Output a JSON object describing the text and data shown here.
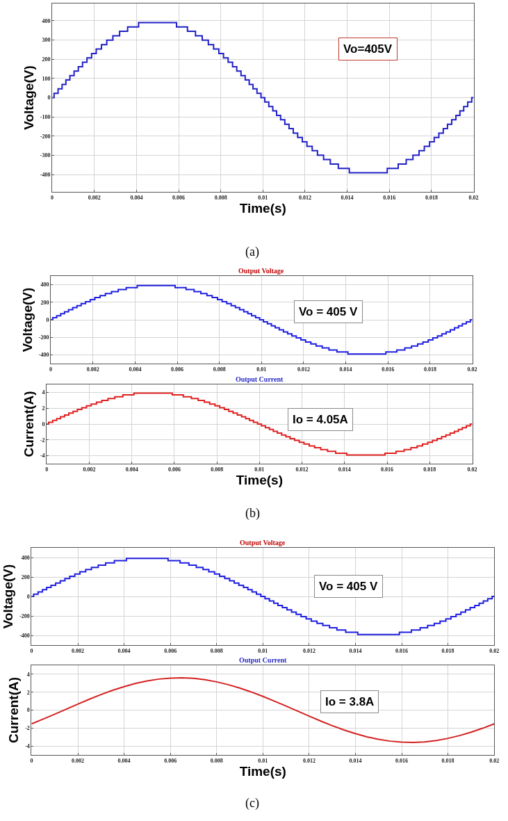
{
  "chart_data": [
    {
      "type": "step",
      "xlabel": "Time(s)",
      "ylabel": "Voltage(V)",
      "annotations": [
        "Vo=405V",
        "(a)"
      ],
      "grid": true,
      "xlim": [
        0,
        0.02
      ],
      "ylim": [
        -490,
        490
      ],
      "xticks": [
        0,
        0.002,
        0.004,
        0.006,
        0.008,
        0.01,
        0.012,
        0.014,
        0.016,
        0.018,
        0.02
      ],
      "yticks": [
        -400,
        -300,
        -200,
        -100,
        0,
        100,
        200,
        300,
        400
      ],
      "x": [
        0,
        9e-05,
        0.00028,
        0.00047,
        0.00065,
        0.00084,
        0.00104,
        0.00124,
        0.00144,
        0.00165,
        0.00187,
        0.00209,
        0.00234,
        0.00259,
        0.00288,
        0.0032,
        0.00358,
        0.0041,
        0.0059,
        0.00642,
        0.0068,
        0.00712,
        0.00741,
        0.00766,
        0.00791,
        0.00813,
        0.00835,
        0.00856,
        0.00876,
        0.00896,
        0.00916,
        0.00935,
        0.00953,
        0.00972,
        0.00991,
        0.01009,
        0.01028,
        0.01047,
        0.01065,
        0.01084,
        0.01104,
        0.01124,
        0.01144,
        0.01165,
        0.01187,
        0.01209,
        0.01234,
        0.01259,
        0.01288,
        0.0132,
        0.01358,
        0.0141,
        0.0159,
        0.01642,
        0.0168,
        0.01712,
        0.01741,
        0.01766,
        0.01791,
        0.01813,
        0.01835,
        0.01856,
        0.01876,
        0.01896,
        0.01916,
        0.01935,
        0.01953,
        0.01972,
        0.01991,
        0.02
      ],
      "series": [
        {
          "color": "#1f1fc8",
          "values": [
            0,
            23,
            46,
            69,
            92,
            115,
            138,
            161,
            184,
            207,
            230,
            253,
            276,
            299,
            322,
            345,
            368,
            391,
            368,
            345,
            322,
            299,
            276,
            253,
            230,
            207,
            184,
            161,
            138,
            115,
            92,
            69,
            46,
            23,
            0,
            -23,
            -46,
            -69,
            -92,
            -115,
            -138,
            -161,
            -184,
            -207,
            -230,
            -253,
            -276,
            -299,
            -322,
            -345,
            -368,
            -391,
            -368,
            -345,
            -322,
            -299,
            -276,
            -253,
            -230,
            -207,
            -184,
            -161,
            -138,
            -115,
            -92,
            -69,
            -46,
            -23,
            0,
            0
          ]
        }
      ]
    },
    {
      "type": "step",
      "title": "Output Voltage",
      "ylabel": "Voltage(V)",
      "annotations": [
        "Vo = 405 V"
      ],
      "grid": true,
      "xlim": [
        0,
        0.02
      ],
      "ylim": [
        -500,
        500
      ],
      "xticks": [
        0,
        0.002,
        0.004,
        0.006,
        0.008,
        0.01,
        0.012,
        0.014,
        0.016,
        0.018,
        0.02
      ],
      "yticks": [
        -400,
        -200,
        0,
        200,
        400
      ],
      "x": [
        0,
        9e-05,
        0.00028,
        0.00047,
        0.00065,
        0.00084,
        0.00104,
        0.00124,
        0.00144,
        0.00165,
        0.00187,
        0.00209,
        0.00234,
        0.00259,
        0.00288,
        0.0032,
        0.00358,
        0.0041,
        0.0059,
        0.00642,
        0.0068,
        0.00712,
        0.00741,
        0.00766,
        0.00791,
        0.00813,
        0.00835,
        0.00856,
        0.00876,
        0.00896,
        0.00916,
        0.00935,
        0.00953,
        0.00972,
        0.00991,
        0.01009,
        0.01028,
        0.01047,
        0.01065,
        0.01084,
        0.01104,
        0.01124,
        0.01144,
        0.01165,
        0.01187,
        0.01209,
        0.01234,
        0.01259,
        0.01288,
        0.0132,
        0.01358,
        0.0141,
        0.0159,
        0.01642,
        0.0168,
        0.01712,
        0.01741,
        0.01766,
        0.01791,
        0.01813,
        0.01835,
        0.01856,
        0.01876,
        0.01896,
        0.01916,
        0.01935,
        0.01953,
        0.01972,
        0.01991,
        0.02
      ],
      "series": [
        {
          "color": "#1f1fe0",
          "values": [
            0,
            23,
            46,
            69,
            92,
            115,
            138,
            161,
            184,
            207,
            230,
            253,
            276,
            299,
            322,
            345,
            368,
            391,
            368,
            345,
            322,
            299,
            276,
            253,
            230,
            207,
            184,
            161,
            138,
            115,
            92,
            69,
            46,
            23,
            0,
            -23,
            -46,
            -69,
            -92,
            -115,
            -138,
            -161,
            -184,
            -207,
            -230,
            -253,
            -276,
            -299,
            -322,
            -345,
            -368,
            -391,
            -368,
            -345,
            -322,
            -299,
            -276,
            -253,
            -230,
            -207,
            -184,
            -161,
            -138,
            -115,
            -92,
            -69,
            -46,
            -23,
            0,
            0
          ]
        }
      ]
    },
    {
      "type": "step",
      "title": "Output Current",
      "xlabel": "Time(s)",
      "ylabel": "Current(A)",
      "annotations": [
        "Io = 4.05A",
        "(b)"
      ],
      "grid": true,
      "xlim": [
        0,
        0.02
      ],
      "ylim": [
        -5,
        5
      ],
      "xticks": [
        0,
        0.002,
        0.004,
        0.006,
        0.008,
        0.01,
        0.012,
        0.014,
        0.016,
        0.018,
        0.02
      ],
      "yticks": [
        -4,
        -2,
        0,
        2,
        4
      ],
      "x": [
        0,
        9e-05,
        0.00028,
        0.00047,
        0.00065,
        0.00084,
        0.00104,
        0.00124,
        0.00144,
        0.00165,
        0.00187,
        0.00209,
        0.00234,
        0.00259,
        0.00288,
        0.0032,
        0.00358,
        0.0041,
        0.0059,
        0.00642,
        0.0068,
        0.00712,
        0.00741,
        0.00766,
        0.00791,
        0.00813,
        0.00835,
        0.00856,
        0.00876,
        0.00896,
        0.00916,
        0.00935,
        0.00953,
        0.00972,
        0.00991,
        0.01009,
        0.01028,
        0.01047,
        0.01065,
        0.01084,
        0.01104,
        0.01124,
        0.01144,
        0.01165,
        0.01187,
        0.01209,
        0.01234,
        0.01259,
        0.01288,
        0.0132,
        0.01358,
        0.0141,
        0.0159,
        0.01642,
        0.0168,
        0.01712,
        0.01741,
        0.01766,
        0.01791,
        0.01813,
        0.01835,
        0.01856,
        0.01876,
        0.01896,
        0.01916,
        0.01935,
        0.01953,
        0.01972,
        0.01991,
        0.02
      ],
      "series": [
        {
          "color": "#e02020",
          "values": [
            0,
            0.23,
            0.46,
            0.69,
            0.92,
            1.15,
            1.38,
            1.61,
            1.84,
            2.07,
            2.3,
            2.53,
            2.76,
            2.99,
            3.22,
            3.45,
            3.68,
            3.91,
            3.68,
            3.45,
            3.22,
            2.99,
            2.76,
            2.53,
            2.3,
            2.07,
            1.84,
            1.61,
            1.38,
            1.15,
            0.92,
            0.69,
            0.46,
            0.23,
            0,
            -0.23,
            -0.46,
            -0.69,
            -0.92,
            -1.15,
            -1.38,
            -1.61,
            -1.84,
            -2.07,
            -2.3,
            -2.53,
            -2.76,
            -2.99,
            -3.22,
            -3.45,
            -3.68,
            -3.91,
            -3.68,
            -3.45,
            -3.22,
            -2.99,
            -2.76,
            -2.53,
            -2.3,
            -2.07,
            -1.84,
            -1.61,
            -1.38,
            -1.15,
            -0.92,
            -0.69,
            -0.46,
            -0.23,
            0,
            0
          ]
        }
      ]
    },
    {
      "type": "step",
      "title": "Output Voltage",
      "ylabel": "Voltage(V)",
      "annotations": [
        "Vo = 405 V"
      ],
      "grid": true,
      "xlim": [
        0,
        0.02
      ],
      "ylim": [
        -500,
        500
      ],
      "xticks": [
        0,
        0.002,
        0.004,
        0.006,
        0.008,
        0.01,
        0.012,
        0.014,
        0.016,
        0.018,
        0.02
      ],
      "yticks": [
        -400,
        -200,
        0,
        200,
        400
      ],
      "x": [
        0,
        9e-05,
        0.00028,
        0.00047,
        0.00065,
        0.00084,
        0.00104,
        0.00124,
        0.00144,
        0.00165,
        0.00187,
        0.00209,
        0.00234,
        0.00259,
        0.00288,
        0.0032,
        0.00358,
        0.0041,
        0.0059,
        0.00642,
        0.0068,
        0.00712,
        0.00741,
        0.00766,
        0.00791,
        0.00813,
        0.00835,
        0.00856,
        0.00876,
        0.00896,
        0.00916,
        0.00935,
        0.00953,
        0.00972,
        0.00991,
        0.01009,
        0.01028,
        0.01047,
        0.01065,
        0.01084,
        0.01104,
        0.01124,
        0.01144,
        0.01165,
        0.01187,
        0.01209,
        0.01234,
        0.01259,
        0.01288,
        0.0132,
        0.01358,
        0.0141,
        0.0159,
        0.01642,
        0.0168,
        0.01712,
        0.01741,
        0.01766,
        0.01791,
        0.01813,
        0.01835,
        0.01856,
        0.01876,
        0.01896,
        0.01916,
        0.01935,
        0.01953,
        0.01972,
        0.01991,
        0.02
      ],
      "series": [
        {
          "color": "#1f1fe0",
          "values": [
            0,
            23,
            46,
            69,
            92,
            115,
            138,
            161,
            184,
            207,
            230,
            253,
            276,
            299,
            322,
            345,
            368,
            391,
            368,
            345,
            322,
            299,
            276,
            253,
            230,
            207,
            184,
            161,
            138,
            115,
            92,
            69,
            46,
            23,
            0,
            -23,
            -46,
            -69,
            -92,
            -115,
            -138,
            -161,
            -184,
            -207,
            -230,
            -253,
            -276,
            -299,
            -322,
            -345,
            -368,
            -391,
            -368,
            -345,
            -322,
            -299,
            -276,
            -253,
            -230,
            -207,
            -184,
            -161,
            -138,
            -115,
            -92,
            -69,
            -46,
            -23,
            0,
            0
          ]
        }
      ]
    },
    {
      "type": "line",
      "title": "Output Current",
      "xlabel": "Time(s)",
      "ylabel": "Current(A)",
      "annotations": [
        "Io = 3.8A",
        "(c)"
      ],
      "grid": true,
      "xlim": [
        0,
        0.02
      ],
      "ylim": [
        -5,
        5
      ],
      "xticks": [
        0,
        0.002,
        0.004,
        0.006,
        0.008,
        0.01,
        0.012,
        0.014,
        0.016,
        0.018,
        0.02
      ],
      "yticks": [
        -4,
        -2,
        0,
        2,
        4
      ],
      "x": [
        0,
        0.0005,
        0.001,
        0.0015,
        0.002,
        0.0025,
        0.003,
        0.0035,
        0.004,
        0.0045,
        0.005,
        0.0055,
        0.006,
        0.0065,
        0.007,
        0.0075,
        0.008,
        0.0085,
        0.009,
        0.0095,
        0.01,
        0.0105,
        0.011,
        0.0115,
        0.012,
        0.0125,
        0.013,
        0.0135,
        0.014,
        0.0145,
        0.015,
        0.0155,
        0.016,
        0.0165,
        0.017,
        0.0175,
        0.018,
        0.0185,
        0.019,
        0.0195,
        0.02
      ],
      "series": [
        {
          "color": "#d42020",
          "values": [
            -1.53,
            -1.0,
            -0.45,
            0.11,
            0.67,
            1.22,
            1.73,
            2.21,
            2.62,
            2.98,
            3.26,
            3.46,
            3.57,
            3.6,
            3.54,
            3.39,
            3.15,
            2.84,
            2.46,
            2.02,
            1.53,
            1.0,
            0.45,
            -0.11,
            -0.67,
            -1.22,
            -1.73,
            -2.21,
            -2.62,
            -2.98,
            -3.26,
            -3.46,
            -3.57,
            -3.6,
            -3.54,
            -3.39,
            -3.15,
            -2.84,
            -2.46,
            -2.02,
            -1.53
          ]
        }
      ]
    }
  ]
}
